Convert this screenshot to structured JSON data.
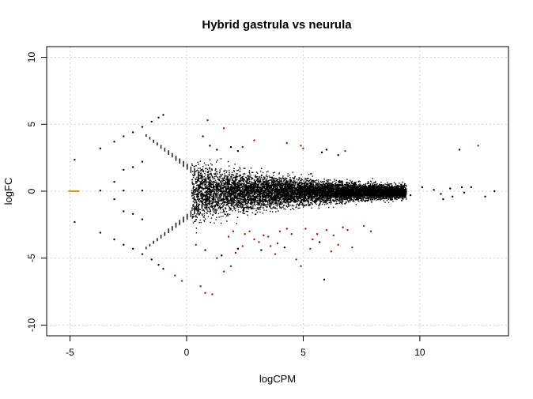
{
  "chart_data": {
    "type": "scatter",
    "title": "Hybrid gastrula vs neurula",
    "xlabel": "logCPM",
    "ylabel": "logFC",
    "xlim": [
      -6.0,
      13.8
    ],
    "ylim": [
      -10.8,
      10.8
    ],
    "xticks": [
      -5,
      0,
      5,
      10
    ],
    "yticks": [
      -10,
      -5,
      0,
      5,
      10
    ],
    "grid": true,
    "colors": {
      "not_significant": "#000000",
      "significant": "#cc0000",
      "zero_count": "#ff8c00",
      "grid": "#d3d3d3",
      "axis": "#000000"
    },
    "series": [
      {
        "role": "zero-count",
        "points": [
          [
            -5.0,
            0.0
          ],
          [
            -4.9,
            0.0
          ],
          [
            -4.8,
            0.0
          ],
          [
            -4.7,
            0.0
          ]
        ]
      },
      {
        "role": "not-significant",
        "points": [
          [
            -4.8,
            2.35
          ],
          [
            -4.8,
            -2.3
          ],
          [
            -3.7,
            3.2
          ],
          [
            -3.7,
            0.05
          ],
          [
            -3.7,
            -3.1
          ],
          [
            -3.1,
            3.7
          ],
          [
            -3.1,
            0.7
          ],
          [
            -3.1,
            -0.6
          ],
          [
            -3.1,
            -3.6
          ],
          [
            -2.7,
            4.1
          ],
          [
            -2.7,
            1.6
          ],
          [
            -2.7,
            0.05
          ],
          [
            -2.7,
            -1.5
          ],
          [
            -2.7,
            -4.0
          ],
          [
            -2.3,
            4.4
          ],
          [
            -2.3,
            1.8
          ],
          [
            -2.3,
            -1.7
          ],
          [
            -2.3,
            -4.3
          ],
          [
            -1.9,
            4.8
          ],
          [
            -1.9,
            2.2
          ],
          [
            -1.9,
            0.05
          ],
          [
            -1.9,
            -2.1
          ],
          [
            -1.9,
            -4.7
          ],
          [
            -1.5,
            5.2
          ],
          [
            -1.2,
            5.5
          ],
          [
            -1.0,
            5.7
          ],
          [
            -1.5,
            -5.1
          ],
          [
            -1.2,
            -5.5
          ],
          [
            -1.0,
            -5.8
          ],
          [
            0.7,
            4.1
          ],
          [
            1.0,
            3.4
          ],
          [
            1.3,
            3.1
          ],
          [
            1.9,
            3.3
          ],
          [
            2.2,
            3.0
          ],
          [
            0.8,
            -4.4
          ],
          [
            1.5,
            -4.8
          ],
          [
            2.2,
            -4.3
          ],
          [
            3.2,
            -4.4
          ],
          [
            4.2,
            -4.2
          ],
          [
            5.9,
            -6.6
          ],
          [
            5.8,
            2.9
          ],
          [
            6.5,
            2.7
          ],
          [
            6.0,
            3.1
          ],
          [
            5.7,
            -3.8
          ],
          [
            9.2,
            0.4
          ],
          [
            9.6,
            -0.3
          ],
          [
            10.1,
            0.3
          ],
          [
            10.6,
            0.1
          ],
          [
            10.9,
            -0.2
          ],
          [
            11.3,
            0.2
          ],
          [
            11.4,
            -0.4
          ],
          [
            11.8,
            0.3
          ],
          [
            11.9,
            -0.1
          ],
          [
            12.2,
            0.3
          ],
          [
            12.8,
            -0.4
          ],
          [
            13.2,
            0.0
          ],
          [
            11.7,
            3.1
          ],
          [
            11.0,
            -0.6
          ]
        ]
      },
      {
        "role": "significant",
        "points": [
          [
            0.9,
            5.3
          ],
          [
            1.6,
            4.7
          ],
          [
            2.4,
            3.3
          ],
          [
            2.9,
            3.8
          ],
          [
            4.3,
            3.6
          ],
          [
            4.9,
            3.4
          ],
          [
            5.0,
            3.2
          ],
          [
            6.8,
            3.0
          ],
          [
            12.5,
            3.4
          ],
          [
            -0.5,
            -6.3
          ],
          [
            -0.2,
            -6.7
          ],
          [
            0.6,
            -7.1
          ],
          [
            0.8,
            -7.6
          ],
          [
            1.1,
            -7.7
          ],
          [
            1.6,
            -6.0
          ],
          [
            1.9,
            -5.6
          ],
          [
            2.1,
            -4.6
          ],
          [
            2.4,
            -4.1
          ],
          [
            2.5,
            -3.2
          ],
          [
            2.7,
            -3.0
          ],
          [
            2.9,
            -3.6
          ],
          [
            3.1,
            -3.8
          ],
          [
            3.3,
            -3.3
          ],
          [
            3.5,
            -3.4
          ],
          [
            3.6,
            -4.1
          ],
          [
            3.8,
            -4.7
          ],
          [
            4.0,
            -3.0
          ],
          [
            4.3,
            -2.8
          ],
          [
            4.5,
            -3.2
          ],
          [
            4.7,
            -5.1
          ],
          [
            4.9,
            -5.6
          ],
          [
            5.1,
            -2.8
          ],
          [
            5.4,
            -3.6
          ],
          [
            5.6,
            -3.2
          ],
          [
            6.0,
            -2.9
          ],
          [
            6.2,
            -4.5
          ],
          [
            6.5,
            -4.0
          ],
          [
            6.7,
            -2.7
          ],
          [
            6.9,
            -2.9
          ],
          [
            7.1,
            -4.2
          ],
          [
            7.6,
            -2.6
          ],
          [
            7.9,
            -3.0
          ],
          [
            1.3,
            -5.0
          ],
          [
            1.8,
            -3.4
          ],
          [
            0.4,
            -4.0
          ],
          [
            2.0,
            -3.0
          ],
          [
            3.9,
            -3.9
          ],
          [
            5.3,
            -4.3
          ],
          [
            6.3,
            -3.3
          ]
        ]
      }
    ]
  }
}
